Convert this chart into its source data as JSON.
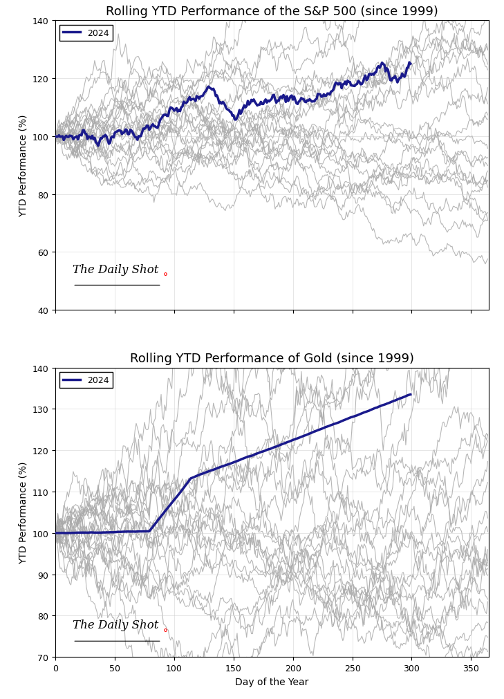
{
  "title_sp500": "Rolling YTD Performance of the S&P 500 (since 1999)",
  "title_gold": "Rolling YTD Performance of Gold (since 1999)",
  "xlabel": "Day of the Year",
  "ylabel": "YTD Performance (%)",
  "sp500_ylim": [
    40,
    140
  ],
  "gold_ylim": [
    70,
    140
  ],
  "xlim": [
    0,
    365
  ],
  "sp500_yticks": [
    40,
    60,
    80,
    100,
    120,
    140
  ],
  "gold_yticks": [
    70,
    80,
    90,
    100,
    110,
    120,
    130,
    140
  ],
  "xticks": [
    0,
    50,
    100,
    150,
    200,
    250,
    300,
    350
  ],
  "highlight_year": "2024",
  "highlight_color": "#1a1a8c",
  "gray_color": "#aaaaaa",
  "background_color": "#ffffff",
  "highlight_lw": 2.5,
  "gray_lw": 0.8,
  "num_years": 25,
  "seed": 42,
  "watermark_text": "The Daily Shot",
  "title_fontsize": 13,
  "label_fontsize": 10,
  "tick_fontsize": 9
}
